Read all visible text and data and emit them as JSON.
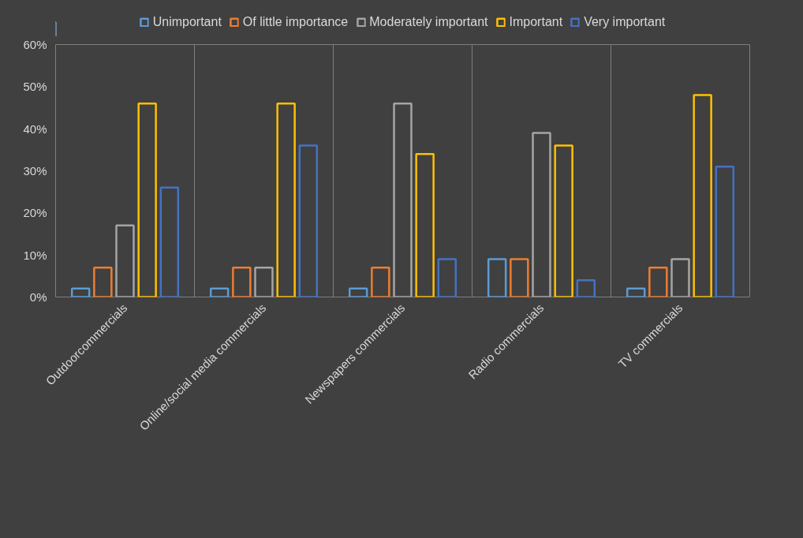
{
  "chart_data": {
    "type": "bar",
    "categories": [
      "Outdoorcommercials",
      "Online/social media commercials",
      "Newspapers commercials",
      "Radio commercials",
      "TV commercials"
    ],
    "series": [
      {
        "name": "Unimportant",
        "color": "#5b9bd5",
        "values": [
          2,
          2,
          2,
          9,
          2
        ]
      },
      {
        "name": "Of little importance",
        "color": "#ed7d31",
        "values": [
          7,
          7,
          7,
          9,
          7
        ]
      },
      {
        "name": "Moderately important",
        "color": "#a5a5a5",
        "values": [
          17,
          7,
          46,
          39,
          9
        ]
      },
      {
        "name": "Important",
        "color": "#ffc000",
        "values": [
          46,
          46,
          34,
          36,
          48
        ]
      },
      {
        "name": "Very important",
        "color": "#4472c4",
        "values": [
          26,
          36,
          9,
          4,
          31
        ]
      }
    ],
    "ylim": [
      0,
      60
    ],
    "yticks": [
      {
        "value": 0,
        "label": "0%"
      },
      {
        "value": 10,
        "label": "10%"
      },
      {
        "value": 20,
        "label": "20%"
      },
      {
        "value": 30,
        "label": "30%"
      },
      {
        "value": 40,
        "label": "40%"
      },
      {
        "value": 50,
        "label": "50%"
      },
      {
        "value": 60,
        "label": "60%"
      }
    ],
    "grid": "x",
    "legend": "top"
  }
}
